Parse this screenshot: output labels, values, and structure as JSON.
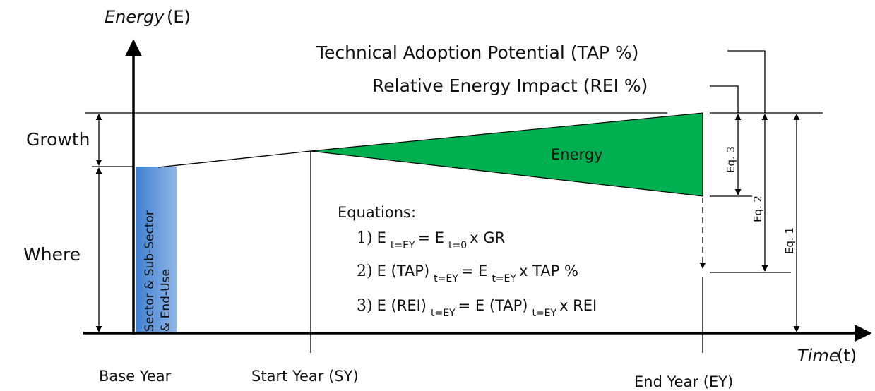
{
  "axes": {
    "y_label": "Energy",
    "y_symbol": "(E)",
    "x_label": "Time",
    "x_symbol": "(t)"
  },
  "labels": {
    "tap": "Technical Adoption Potential (TAP %)",
    "rei": "Relative Energy Impact (REI %)",
    "growth": "Growth",
    "where": "Where",
    "bar_line1": "Sector & Sub-Sector",
    "bar_line2": "& End-Use",
    "area": "Energy",
    "eq3": "Eq. 3",
    "eq2": "Eq. 2",
    "eq1": "Eq. 1"
  },
  "years": {
    "base": "Base Year",
    "start": "Start Year (SY)",
    "end": "End Year (EY)"
  },
  "equations": {
    "title": "Equations:",
    "lines": [
      [
        {
          "text": "1)",
          "serif": true
        },
        {
          "text": "E"
        },
        {
          "text": "t=EY",
          "sub": true
        },
        {
          "text": "= E"
        },
        {
          "text": "t=0",
          "sub": true
        },
        {
          "text": "x GR"
        }
      ],
      [
        {
          "text": "2)",
          "serif": true
        },
        {
          "text": "E (TAP)"
        },
        {
          "text": "t=EY",
          "sub": true
        },
        {
          "text": "= E"
        },
        {
          "text": "t=EY",
          "sub": true
        },
        {
          "text": "x TAP %"
        }
      ],
      [
        {
          "text": "3)",
          "serif": true
        },
        {
          "text": "E (REI)"
        },
        {
          "text": "t=EY",
          "sub": true
        },
        {
          "text": "= E (TAP)"
        },
        {
          "text": "t=EY",
          "sub": true
        },
        {
          "text": "x REI"
        }
      ]
    ]
  }
}
